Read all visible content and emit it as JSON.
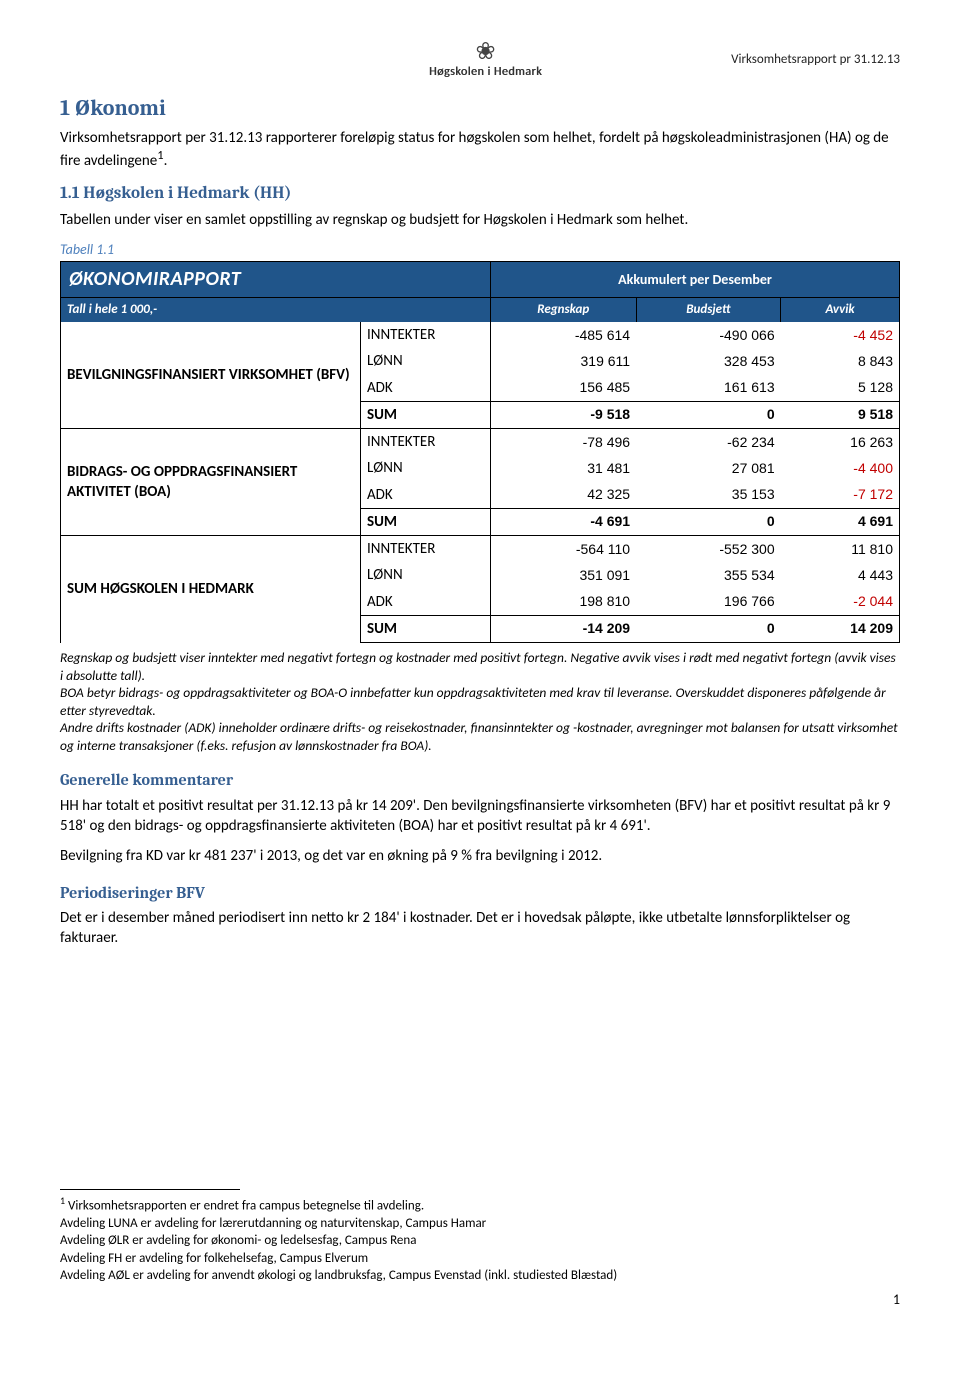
{
  "header": {
    "logo_text": "Høgskolen i Hedmark",
    "right": "Virksomhetsrapport pr 31.12.13"
  },
  "section1": {
    "num_title": "1   Økonomi",
    "intro": "Virksomhetsrapport per 31.12.13 rapporterer foreløpig status for høgskolen som helhet, fordelt på høgskoleadministrasjonen (HA) og de fire avdelingene",
    "footref": "1",
    "intro_end": "."
  },
  "section11": {
    "title": "1.1   Høgskolen i Hedmark (HH)",
    "text": "Tabellen under viser en samlet oppstilling av regnskap og budsjett for Høgskolen i Hedmark som helhet."
  },
  "table": {
    "caption": "Tabell 1.1",
    "title": "ØKONOMIRAPPORT",
    "akk": "Akkumulert per Desember",
    "subhead": "Tall i hele 1 000,-",
    "cols": [
      "Regnskap",
      "Budsjett",
      "Avvik"
    ],
    "types": [
      "INNTEKTER",
      "LØNN",
      "ADK",
      "SUM"
    ],
    "groups": [
      {
        "label": "BEVILGNINGSFINANSIERT VIRKSOMHET (BFV)",
        "rows": [
          {
            "regnskap": "-485 614",
            "budsjett": "-490 066",
            "avvik": "-4 452",
            "avvik_neg": true
          },
          {
            "regnskap": "319 611",
            "budsjett": "328 453",
            "avvik": "8 843"
          },
          {
            "regnskap": "156 485",
            "budsjett": "161 613",
            "avvik": "5 128"
          },
          {
            "regnskap": "-9 518",
            "budsjett": "0",
            "avvik": "9 518",
            "sum": true
          }
        ]
      },
      {
        "label": "BIDRAGS- OG OPPDRAGSFINANSIERT AKTIVITET (BOA)",
        "rows": [
          {
            "regnskap": "-78 496",
            "budsjett": "-62 234",
            "avvik": "16 263"
          },
          {
            "regnskap": "31 481",
            "budsjett": "27 081",
            "avvik": "-4 400",
            "avvik_neg": true
          },
          {
            "regnskap": "42 325",
            "budsjett": "35 153",
            "avvik": "-7 172",
            "avvik_neg": true
          },
          {
            "regnskap": "-4 691",
            "budsjett": "0",
            "avvik": "4 691",
            "sum": true
          }
        ]
      },
      {
        "label": "SUM HØGSKOLEN I HEDMARK",
        "rows": [
          {
            "regnskap": "-564 110",
            "budsjett": "-552 300",
            "avvik": "11 810"
          },
          {
            "regnskap": "351 091",
            "budsjett": "355 534",
            "avvik": "4 443"
          },
          {
            "regnskap": "198 810",
            "budsjett": "196 766",
            "avvik": "-2 044",
            "avvik_neg": true
          },
          {
            "regnskap": "-14 209",
            "budsjett": "0",
            "avvik": "14 209",
            "sum": true
          }
        ]
      }
    ]
  },
  "notes": {
    "p1": "Regnskap og budsjett viser inntekter med negativt fortegn og kostnader med positivt fortegn. Negative avvik vises i rødt med negativt fortegn (avvik vises i absolutte tall).",
    "p2": "BOA betyr bidrags- og oppdragsaktiviteter og BOA-O innbefatter kun oppdragsaktiviteten med krav til leveranse. Overskuddet disponeres påfølgende år etter styrevedtak.",
    "p3": "Andre drifts kostnader (ADK) inneholder ordinære drifts- og reisekostnader, finansinntekter og -kostnader, avregninger mot balansen for utsatt virksomhet og interne transaksjoner (f.eks. refusjon av lønnskostnader fra BOA)."
  },
  "generelle": {
    "title": "Generelle kommentarer",
    "p1": "HH har totalt et positivt resultat per 31.12.13 på kr 14 209'. Den bevilgningsfinansierte virksomheten (BFV) har et positivt resultat på kr 9 518' og den bidrags- og oppdragsfinansierte aktiviteten (BOA) har et positivt resultat på kr 4 691'.",
    "p2": "Bevilgning fra KD var kr 481 237' i 2013, og det var en økning på 9 % fra bevilgning i 2012."
  },
  "period": {
    "title": "Periodiseringer BFV",
    "p1": "Det er i desember måned periodisert inn netto kr 2 184' i kostnader. Det er i hovedsak påløpte, ikke utbetalte lønnsforpliktelser og fakturaer."
  },
  "endnotes": {
    "n1": "Virksomhetsrapporten er endret fra campus betegnelse til avdeling.",
    "n2": "Avdeling LUNA er avdeling for lærerutdanning og naturvitenskap, Campus Hamar",
    "n3": "Avdeling ØLR er avdeling for økonomi- og ledelsesfag, Campus Rena",
    "n4": "Avdeling FH er avdeling for folkehelsefag, Campus Elverum",
    "n5": "Avdeling AØL er avdeling for anvendt økologi og landbruksfag, Campus Evenstad (inkl. studiested Blæstad)"
  },
  "page": "1"
}
